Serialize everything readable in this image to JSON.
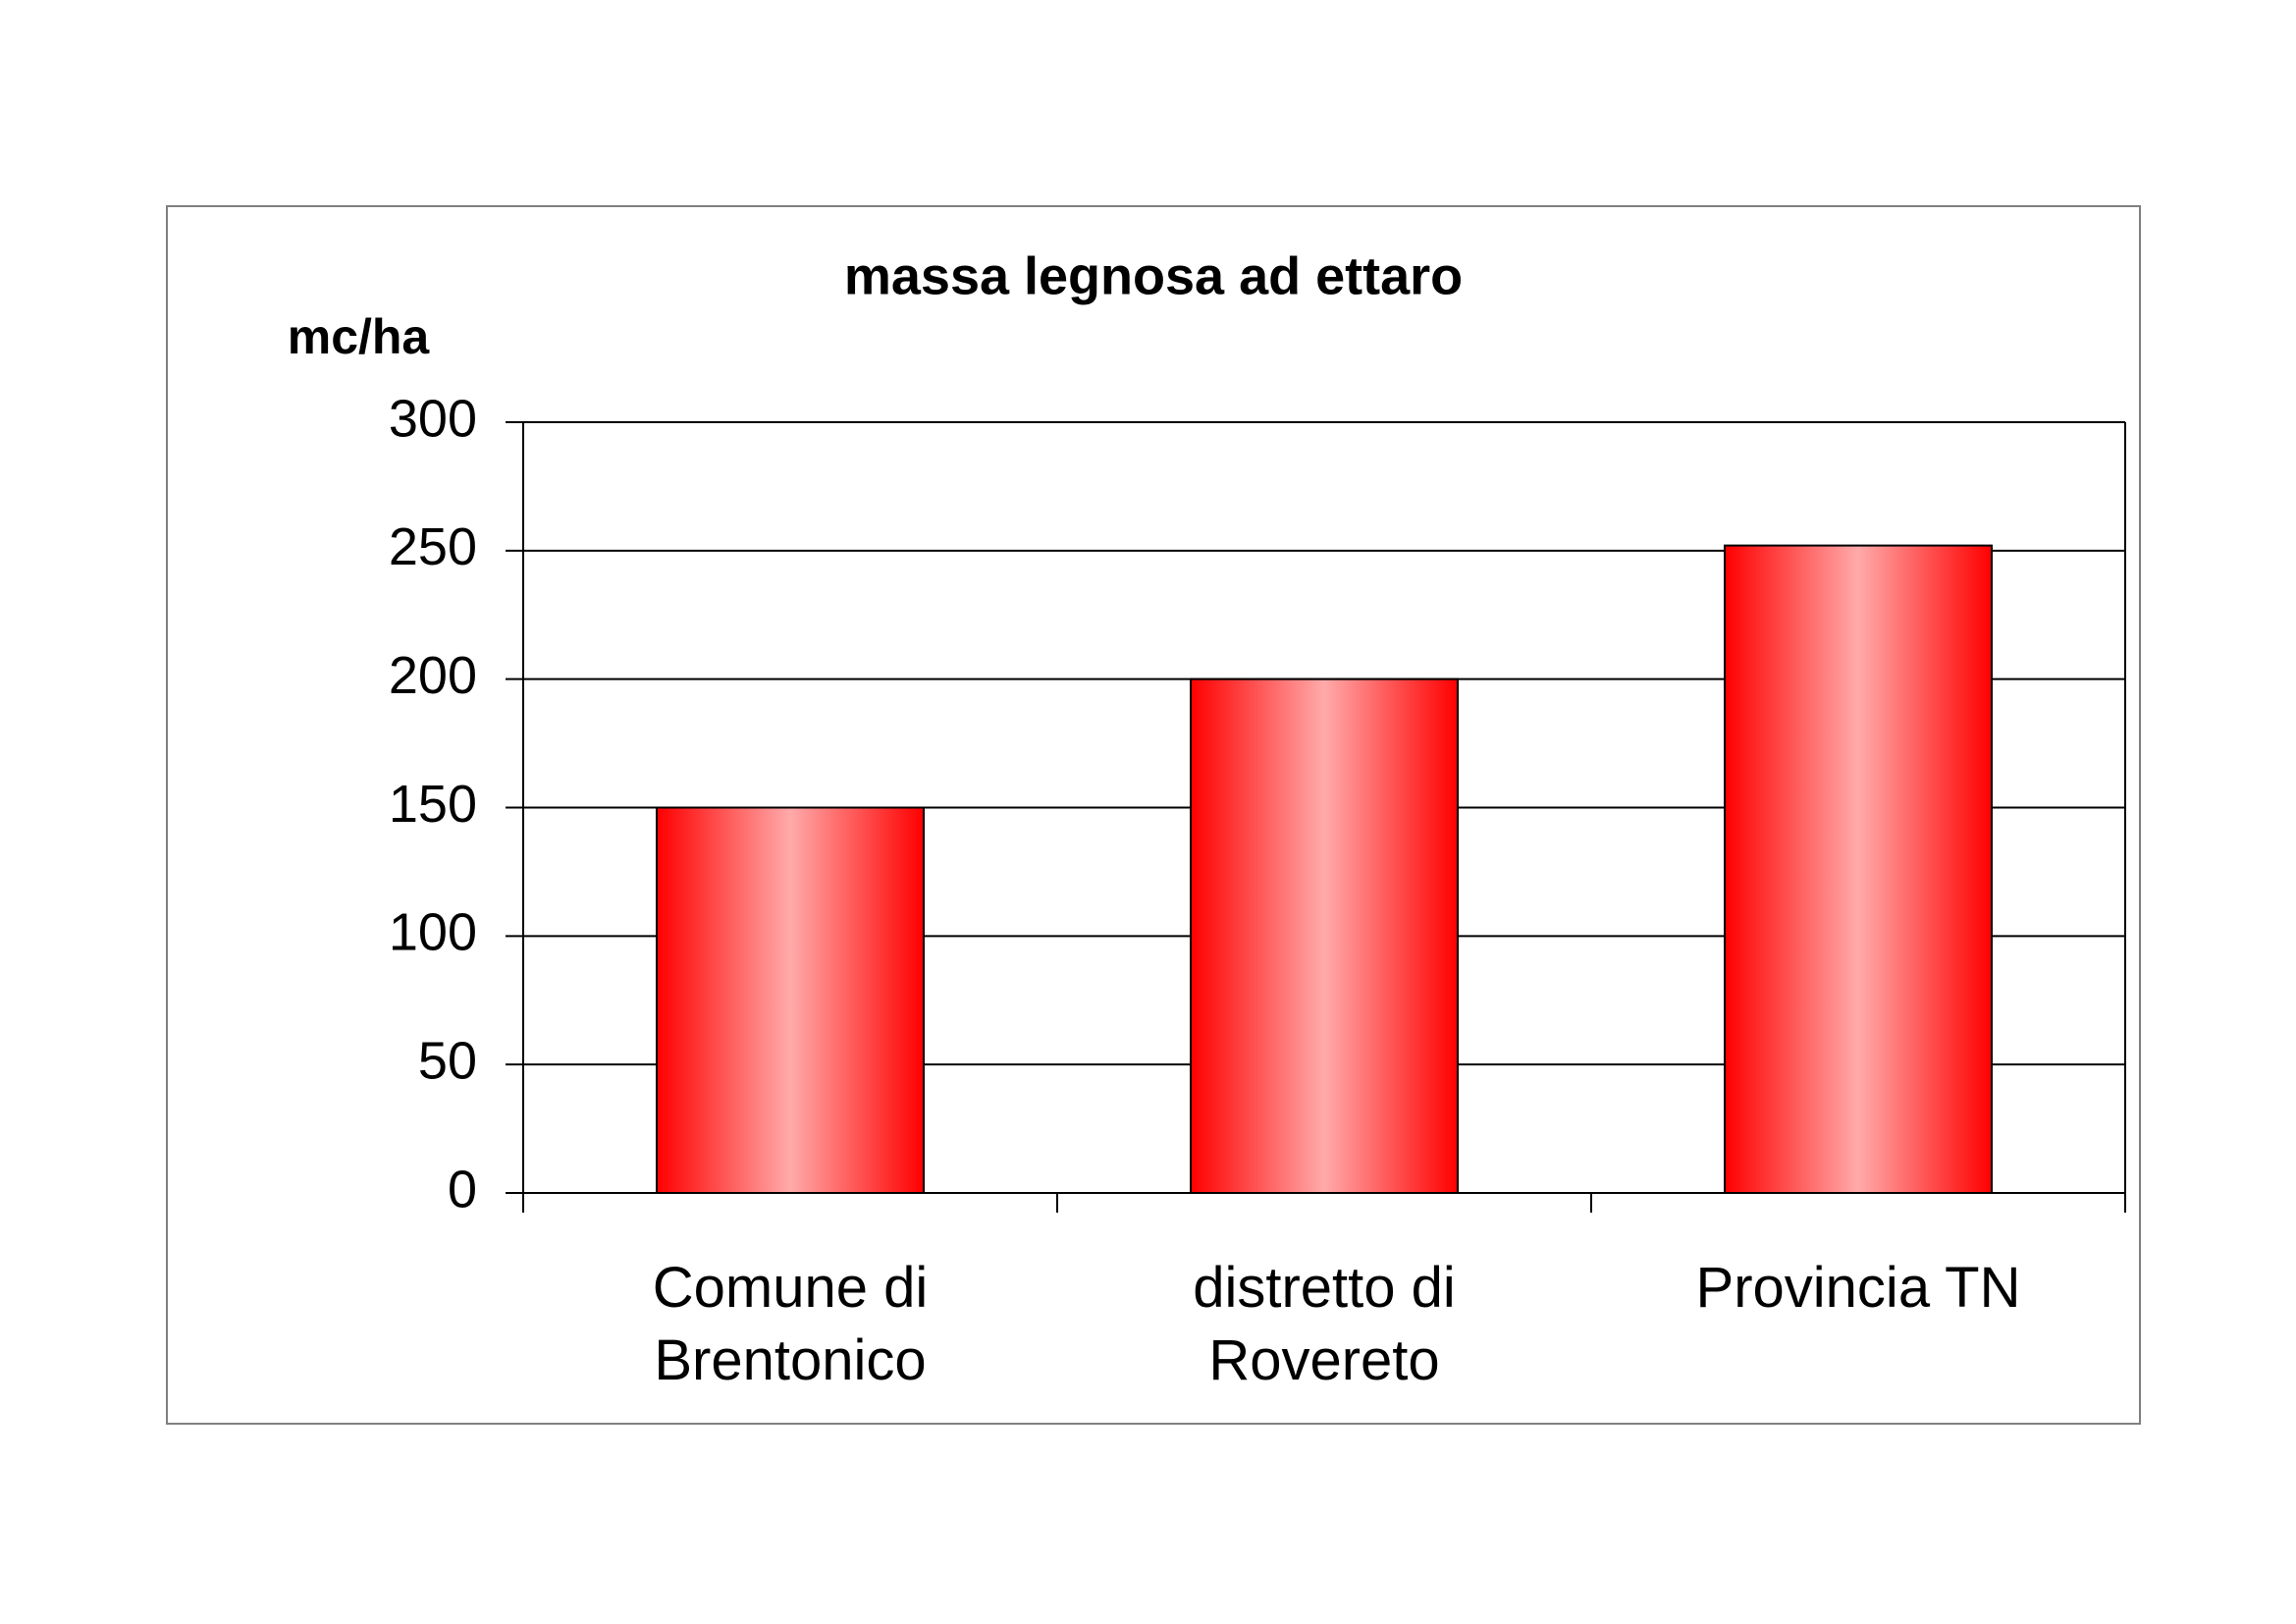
{
  "chart_data": {
    "type": "bar",
    "title": "massa legnosa ad ettaro",
    "y_label": "mc/ha",
    "categories": [
      "Comune di Brentonico",
      "distretto di Rovereto",
      "Provincia TN"
    ],
    "values": [
      150,
      200,
      252
    ],
    "color": "#ff0000",
    "ylim": [
      0,
      300
    ],
    "yticks": [
      0,
      50,
      100,
      150,
      200,
      250,
      300
    ],
    "grid": true
  }
}
